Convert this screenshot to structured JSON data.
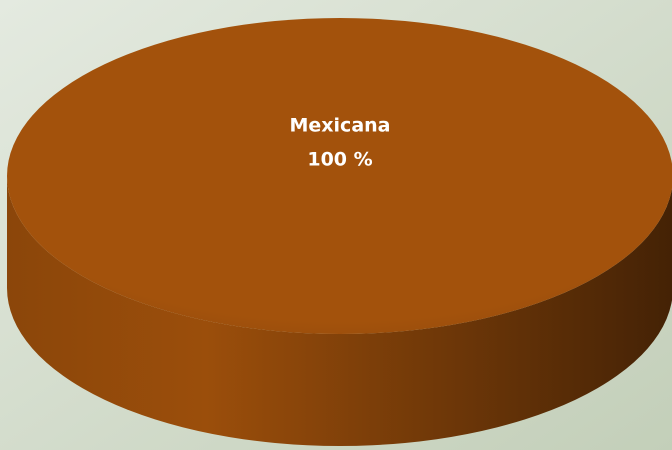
{
  "chart_data": {
    "type": "pie",
    "categories": [
      "Mexicana"
    ],
    "values": [
      100
    ],
    "value_labels": [
      "100 %"
    ],
    "colors": [
      "#a3520c"
    ]
  }
}
